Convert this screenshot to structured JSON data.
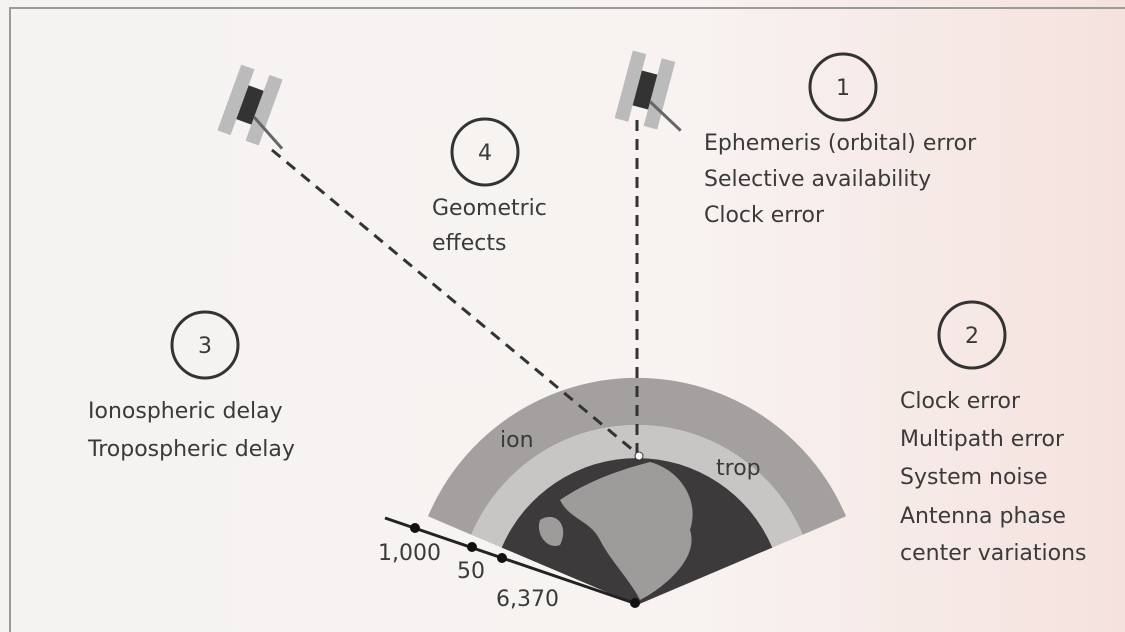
{
  "groups": [
    {
      "number": "1",
      "items": [
        "Ephemeris (orbital) error",
        "Selective availability",
        "Clock error"
      ]
    },
    {
      "number": "2",
      "items": [
        "Clock error",
        "Multipath error",
        "System noise",
        "Antenna phase",
        "center variations"
      ]
    },
    {
      "number": "3",
      "items": [
        "Ionospheric delay",
        "Tropospheric delay"
      ]
    },
    {
      "number": "4",
      "items": [
        "Geometric",
        "effects"
      ]
    }
  ],
  "layers": [
    "ion",
    "trop"
  ],
  "scale": [
    "1,000",
    "50",
    "6,370"
  ]
}
